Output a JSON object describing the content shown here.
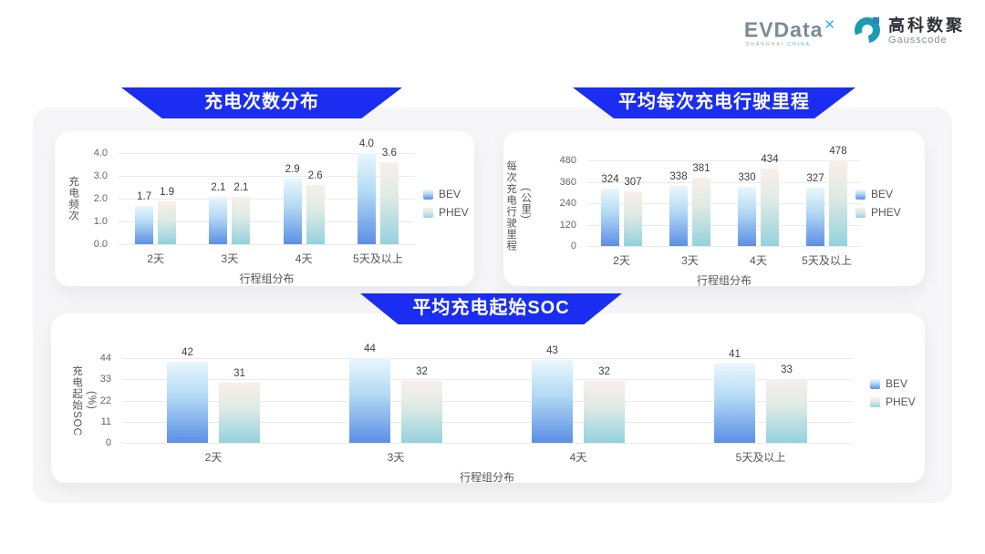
{
  "brand": {
    "evdata_text": "EVData",
    "evdata_x": "✕",
    "evdata_sub1": "SHANGHAI",
    "evdata_sub2": "CHINA",
    "gausscode_cn": "高科数聚",
    "gausscode_en": "Gausscode"
  },
  "colors": {
    "banner_blue": "#1a2df0",
    "bev_top": "#eaf7fd",
    "bev_mid": "#b4daf4",
    "bev_bottom": "#5b8fe4",
    "phev_top": "#f8efe9",
    "phev_mid": "#dfeae5",
    "phev_bottom": "#93d2dd",
    "grid": "#ebebeb"
  },
  "chart_data": [
    {
      "type": "bar",
      "title": "充电次数分布",
      "xlabel": "行程组分布",
      "ylabel": "充电频次",
      "ylabel_unit": "",
      "categories": [
        "2天",
        "3天",
        "4天",
        "5天及以上"
      ],
      "series": [
        {
          "name": "BEV",
          "values": [
            "1.7",
            "2.1",
            "2.9",
            "4.0"
          ]
        },
        {
          "name": "PHEV",
          "values": [
            "1.9",
            "2.1",
            "2.6",
            "3.6"
          ]
        }
      ],
      "ylim": [
        0,
        4
      ],
      "yticks": [
        "0.0",
        "1.0",
        "2.0",
        "3.0",
        "4.0"
      ],
      "legend_position": "right",
      "grid": "on"
    },
    {
      "type": "bar",
      "title": "平均每次充电行驶里程",
      "xlabel": "行程组分布",
      "ylabel": "每次充电行驶里程",
      "ylabel_unit": "(公里)",
      "categories": [
        "2天",
        "3天",
        "4天",
        "5天及以上"
      ],
      "series": [
        {
          "name": "BEV",
          "values": [
            "324",
            "338",
            "330",
            "327"
          ]
        },
        {
          "name": "PHEV",
          "values": [
            "307",
            "381",
            "434",
            "478"
          ]
        }
      ],
      "ylim": [
        0,
        480
      ],
      "yticks": [
        "0",
        "120",
        "240",
        "360",
        "480"
      ],
      "legend_position": "right",
      "grid": "on"
    },
    {
      "type": "bar",
      "title": "平均充电起始SOC",
      "xlabel": "行程组分布",
      "ylabel": "充电起始SOC",
      "ylabel_unit": "(%)",
      "categories": [
        "2天",
        "3天",
        "4天",
        "5天及以上"
      ],
      "series": [
        {
          "name": "BEV",
          "values": [
            "42",
            "44",
            "43",
            "41"
          ]
        },
        {
          "name": "PHEV",
          "values": [
            "31",
            "32",
            "32",
            "33"
          ]
        }
      ],
      "ylim": [
        0,
        44
      ],
      "yticks": [
        "0",
        "11",
        "22",
        "33",
        "44"
      ],
      "legend_position": "right",
      "grid": "on"
    }
  ]
}
